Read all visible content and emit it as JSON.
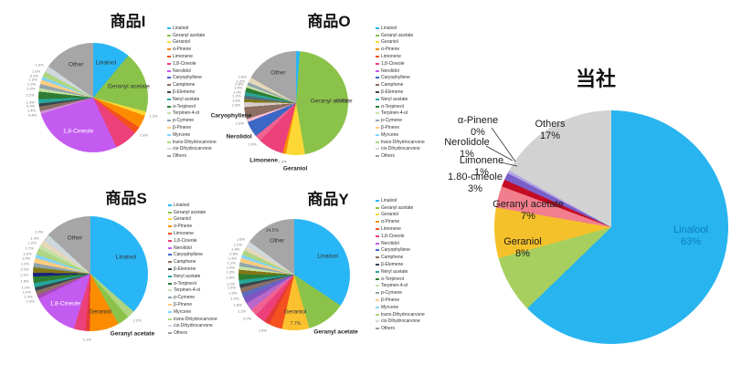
{
  "legend": {
    "items": [
      "Linalool",
      "Geranyl acetate",
      "Geraniol",
      "α-Pinene",
      "Limonene",
      "1,8-Cineole",
      "Nerolidol",
      "Caryophyllene",
      "Camphene",
      "β-Elemene",
      "Neryl acetate",
      "α-Terpineol",
      "Terpinen-4-ol",
      "p-Cymene",
      "β-Pinene",
      "Myrcene",
      "trans-Dihydrocarvone",
      "cis-Dihydrocarvone",
      "Others"
    ],
    "colors": [
      "#29b6f6",
      "#8bc34a",
      "#fdd835",
      "#fb8c00",
      "#f4511e",
      "#ec407a",
      "#c45bf0",
      "#3b68c5",
      "#8d6e63",
      "#37474f",
      "#26a69a",
      "#2e7d32",
      "#c5e1a5",
      "#90a4ae",
      "#ffcc80",
      "#81d4fa",
      "#aed581",
      "#cfd8dc",
      "#9e9e9e"
    ]
  },
  "chart_data": [
    {
      "id": "i",
      "type": "pie",
      "title": "商品I",
      "legend_position": "right",
      "slices": [
        {
          "name": "Linalool",
          "value": 11.0,
          "color": "#29b6f6",
          "label_pos": "in"
        },
        {
          "name": "Geranyl acetate",
          "value": 18.0,
          "color": "#8bc34a",
          "label_pos": "in"
        },
        {
          "name": "",
          "value": 1.2,
          "color": "#fdd835"
        },
        {
          "name": "",
          "value": 3.8,
          "color": "#fb8c00"
        },
        {
          "name": "",
          "value": 2.0,
          "color": "#f4511e"
        },
        {
          "name": "",
          "value": 6.8,
          "color": "#ec407a"
        },
        {
          "name": "1,8-Cineole",
          "value": 27.0,
          "color": "#c45bf0",
          "label_pos": "in",
          "label_color": "#ffffff"
        },
        {
          "name": "",
          "value": 0.8,
          "color": "#ce93d8"
        },
        {
          "name": "",
          "value": 1.4,
          "color": "#8d6e63"
        },
        {
          "name": "",
          "value": 0.9,
          "color": "#37474f"
        },
        {
          "name": "",
          "value": 1.3,
          "color": "#26a69a"
        },
        {
          "name": "",
          "value": 2.2,
          "color": "#2e7d32"
        },
        {
          "name": "",
          "value": 1.0,
          "color": "#c5e1a5"
        },
        {
          "name": "",
          "value": 1.2,
          "color": "#90a4ae"
        },
        {
          "name": "",
          "value": 1.3,
          "color": "#ffcc80"
        },
        {
          "name": "",
          "value": 0.9,
          "color": "#81d4fa"
        },
        {
          "name": "",
          "value": 1.6,
          "color": "#aed581"
        },
        {
          "name": "",
          "value": 1.9,
          "color": "#cfd8dc"
        },
        {
          "name": "Other",
          "value": 15.2,
          "color": "#a6a6a6",
          "label_pos": "in"
        }
      ]
    },
    {
      "id": "o",
      "type": "pie",
      "title": "商品O",
      "legend_position": "right",
      "slices": [
        {
          "name": "Linalool",
          "value": 1.2,
          "color": "#29b6f6"
        },
        {
          "name": "Geranyl acetate",
          "value": 46.5,
          "color": "#8bc34a",
          "label_pos": "in",
          "pct_text": "46.5%"
        },
        {
          "name": "Geraniol",
          "value": 6.0,
          "color": "#fdd835",
          "label_pos": "out"
        },
        {
          "name": "",
          "value": 1.0,
          "color": "#fb8c00"
        },
        {
          "name": "Limonene",
          "value": 8.0,
          "color": "#ec407a",
          "label_pos": "out"
        },
        {
          "name": "",
          "value": 2.0,
          "color": "#f06292"
        },
        {
          "name": "Nerolidol",
          "value": 5.0,
          "color": "#3b68c5",
          "label_pos": "out"
        },
        {
          "name": "",
          "value": 1.0,
          "color": "#f8bbd0"
        },
        {
          "name": "Caryophyllene",
          "value": 3.8,
          "color": "#8d6e63",
          "label_pos": "out"
        },
        {
          "name": "",
          "value": 1.5,
          "color": "#d7ccc8"
        },
        {
          "name": "",
          "value": 1.0,
          "color": "#827717"
        },
        {
          "name": "",
          "value": 1.2,
          "color": "#546e7a"
        },
        {
          "name": "",
          "value": 1.0,
          "color": "#26a69a"
        },
        {
          "name": "",
          "value": 1.4,
          "color": "#2e7d32"
        },
        {
          "name": "",
          "value": 0.8,
          "color": "#c5e1a5"
        },
        {
          "name": "",
          "value": 1.0,
          "color": "#90a4ae"
        },
        {
          "name": "",
          "value": 1.6,
          "color": "#e6d7b9"
        },
        {
          "name": "Other",
          "value": 17.0,
          "color": "#a6a6a6",
          "label_pos": "in"
        }
      ]
    },
    {
      "id": "s",
      "type": "pie",
      "title": "商品S",
      "legend_position": "right",
      "slices": [
        {
          "name": "Linalool",
          "value": 36.0,
          "color": "#29b6f6",
          "label_pos": "in"
        },
        {
          "name": "",
          "value": 2.2,
          "color": "#aed581"
        },
        {
          "name": "Geranyl acetate",
          "value": 3.2,
          "color": "#8bc34a",
          "label_pos": "out"
        },
        {
          "name": "Geraniol",
          "value": 8.2,
          "color": "#fb8c00",
          "label_pos": "in"
        },
        {
          "name": "",
          "value": 1.2,
          "color": "#e53935"
        },
        {
          "name": "",
          "value": 3.2,
          "color": "#ec407a"
        },
        {
          "name": "1,8-Cineole",
          "value": 13.0,
          "color": "#c45bf0",
          "label_pos": "in",
          "label_color": "#ffffff"
        },
        {
          "name": "",
          "value": 1.0,
          "color": "#ab47bc"
        },
        {
          "name": "",
          "value": 1.3,
          "color": "#8d6e63"
        },
        {
          "name": "",
          "value": 1.0,
          "color": "#37474f"
        },
        {
          "name": "",
          "value": 1.2,
          "color": "#26a69a"
        },
        {
          "name": "",
          "value": 1.8,
          "color": "#2e7d32"
        },
        {
          "name": "",
          "value": 1.1,
          "color": "#1a237e"
        },
        {
          "name": "",
          "value": 1.5,
          "color": "#827717"
        },
        {
          "name": "",
          "value": 1.2,
          "color": "#90a4ae"
        },
        {
          "name": "",
          "value": 1.4,
          "color": "#ffcc80"
        },
        {
          "name": "",
          "value": 1.0,
          "color": "#81d4fa"
        },
        {
          "name": "",
          "value": 1.7,
          "color": "#aed581"
        },
        {
          "name": "",
          "value": 1.2,
          "color": "#c5e1a5"
        },
        {
          "name": "",
          "value": 1.4,
          "color": "#e6d7b9"
        },
        {
          "name": "",
          "value": 2.0,
          "color": "#cfd8dc"
        },
        {
          "name": "Other",
          "value": 13.0,
          "color": "#a6a6a6",
          "label_pos": "in"
        }
      ]
    },
    {
      "id": "y",
      "type": "pie",
      "title": "商品Y",
      "legend_position": "right",
      "slices": [
        {
          "name": "Linalool",
          "value": 33.5,
          "color": "#29b6f6",
          "label_pos": "in"
        },
        {
          "name": "Geranyl acetate",
          "value": 11.0,
          "color": "#8bc34a",
          "label_pos": "out"
        },
        {
          "name": "Geraniol",
          "value": 7.7,
          "color": "#fbc02d",
          "label_pos": "in",
          "pct_text": "7.7%"
        },
        {
          "name": "",
          "value": 3.8,
          "color": "#f4511e"
        },
        {
          "name": "",
          "value": 1.5,
          "color": "#e53935"
        },
        {
          "name": "",
          "value": 3.0,
          "color": "#ec407a"
        },
        {
          "name": "",
          "value": 2.0,
          "color": "#f06292"
        },
        {
          "name": "",
          "value": 2.2,
          "color": "#ba68c8"
        },
        {
          "name": "",
          "value": 1.8,
          "color": "#7e57c2"
        },
        {
          "name": "",
          "value": 1.4,
          "color": "#5c6bc0"
        },
        {
          "name": "",
          "value": 1.5,
          "color": "#8d6e63"
        },
        {
          "name": "",
          "value": 1.0,
          "color": "#37474f"
        },
        {
          "name": "",
          "value": 1.2,
          "color": "#26a69a"
        },
        {
          "name": "",
          "value": 1.6,
          "color": "#2e7d32"
        },
        {
          "name": "",
          "value": 1.3,
          "color": "#827717"
        },
        {
          "name": "",
          "value": 1.0,
          "color": "#c5e1a5"
        },
        {
          "name": "",
          "value": 1.1,
          "color": "#90a4ae"
        },
        {
          "name": "",
          "value": 1.3,
          "color": "#ffcc80"
        },
        {
          "name": "",
          "value": 0.9,
          "color": "#81d4fa"
        },
        {
          "name": "",
          "value": 1.4,
          "color": "#aed581"
        },
        {
          "name": "",
          "value": 1.2,
          "color": "#e6d7b9"
        },
        {
          "name": "",
          "value": 1.6,
          "color": "#cfd8dc"
        },
        {
          "name": "Other",
          "value": 14.5,
          "color": "#a6a6a6",
          "label_pos": "in",
          "pct_text": "14.5%"
        }
      ]
    },
    {
      "id": "main",
      "type": "pie",
      "title": "当社",
      "legend_position": "none",
      "slices": [
        {
          "name": "Linalool",
          "value": 63,
          "pct_label": "63%",
          "color": "#27b4ef"
        },
        {
          "name": "Geraniol",
          "value": 8,
          "pct_label": "8%",
          "color": "#a6cf5f"
        },
        {
          "name": "Geranyl acetate",
          "value": 7,
          "pct_label": "7%",
          "color": "#f5c12a"
        },
        {
          "name": "1.80-cineole",
          "value": 3,
          "pct_label": "3%",
          "color": "#f27e8d"
        },
        {
          "name": "Limonene",
          "value": 1,
          "pct_label": "1%",
          "color": "#c40d25"
        },
        {
          "name": "Nerolidole",
          "value": 1,
          "pct_label": "1%",
          "color": "#7a5fc9"
        },
        {
          "name": "α-Pinene",
          "value": 0,
          "pct_label": "0%",
          "color": "#b3a5e6"
        },
        {
          "name": "Others",
          "value": 17,
          "pct_label": "17%",
          "color": "#d2d2d2"
        }
      ]
    }
  ]
}
